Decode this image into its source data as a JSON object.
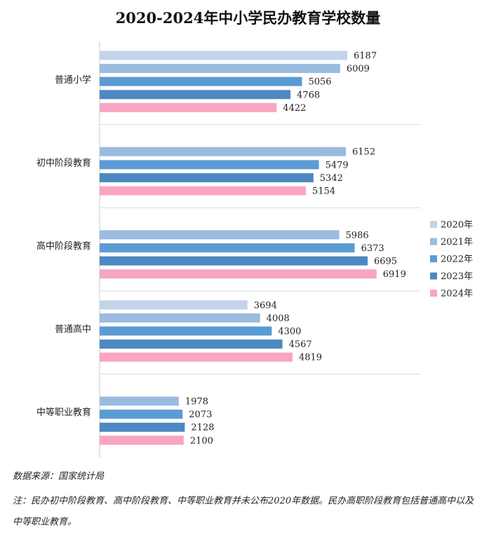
{
  "chart_data": {
    "type": "bar",
    "orientation": "horizontal",
    "title": "2020-2024年中小学民办教育学校数量",
    "categories": [
      "普通小学",
      "初中阶段教育",
      "高中阶段教育",
      "普通高中",
      "中等职业教育"
    ],
    "series": [
      {
        "name": "2020年",
        "color": "#c3d3ea",
        "values": [
          6187,
          null,
          null,
          3694,
          null
        ]
      },
      {
        "name": "2021年",
        "color": "#9bbbe0",
        "values": [
          6009,
          6152,
          5986,
          4008,
          1978
        ]
      },
      {
        "name": "2022年",
        "color": "#5b9bd5",
        "values": [
          5056,
          5479,
          6373,
          4300,
          2073
        ]
      },
      {
        "name": "2023年",
        "color": "#4d88c0",
        "values": [
          4768,
          5342,
          6695,
          4567,
          2128
        ]
      },
      {
        "name": "2024年",
        "color": "#f8a5c2",
        "values": [
          4422,
          5154,
          6919,
          4819,
          2100
        ]
      }
    ],
    "xlim": [
      0,
      8000
    ],
    "legend": "right",
    "grid": "horizontal separators between categories"
  },
  "footer": {
    "source": "数据来源：国家统计局",
    "note": "注：民办初中阶段教育、高中阶段教育、中等职业教育并未公布2020年数据。民办高职阶段教育包括普通高中以及中等职业教育。"
  }
}
